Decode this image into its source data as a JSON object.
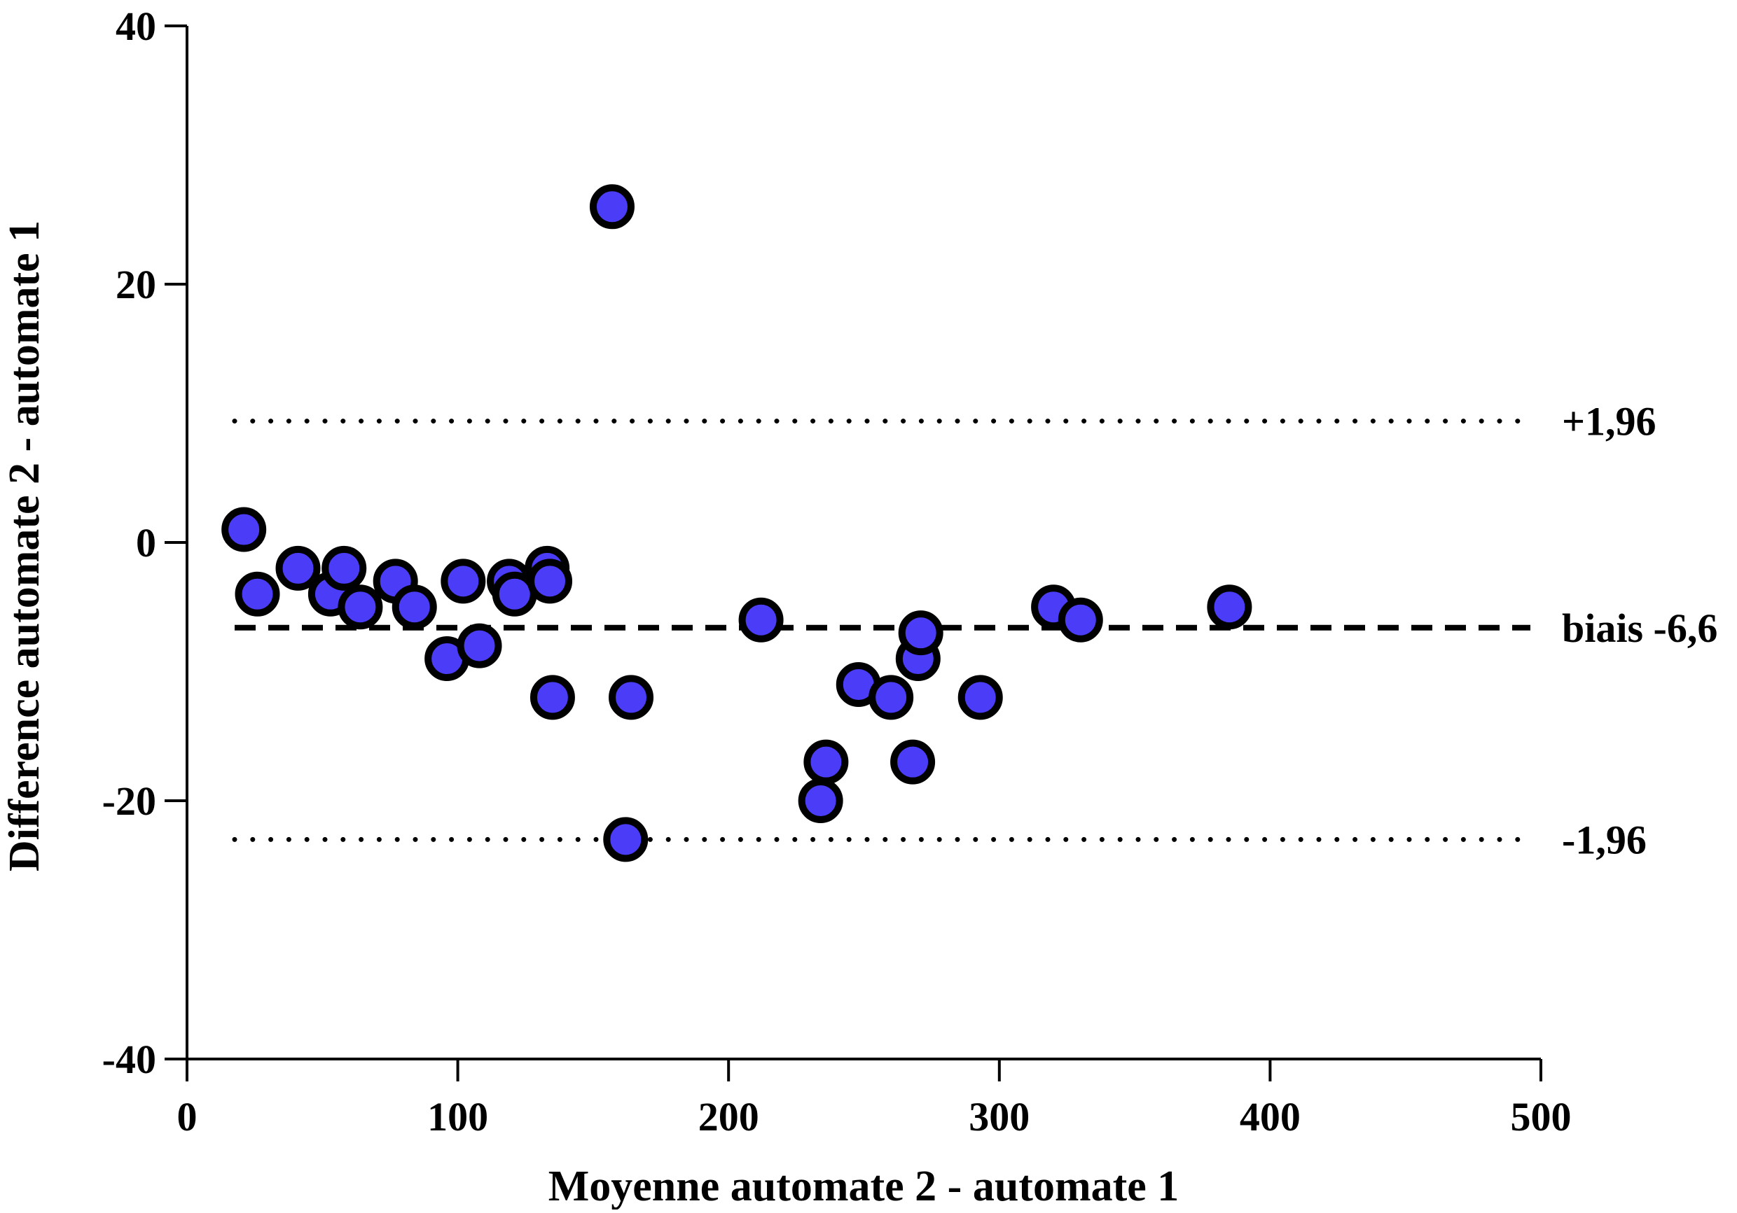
{
  "chart_data": {
    "type": "scatter",
    "title": "",
    "xlabel": "Moyenne automate 2 - automate 1",
    "ylabel": "Difference automate 2 - automate 1",
    "xlim": [
      0,
      500
    ],
    "ylim": [
      -40,
      40
    ],
    "x_ticks": [
      0,
      100,
      200,
      300,
      400,
      500
    ],
    "y_ticks": [
      -40,
      -20,
      0,
      20,
      40
    ],
    "x_tick_labels": [
      "0",
      "100",
      "200",
      "300",
      "400",
      "500"
    ],
    "y_tick_labels": [
      "-40",
      "-20",
      "0",
      "20",
      "40"
    ],
    "grid": false,
    "legend": "none",
    "point_color": "#4a3cf7",
    "point_edge_color": "#000000",
    "reference_lines": [
      {
        "label": "+1,96",
        "y": 9.4,
        "style": "dotted"
      },
      {
        "label": "biais -6,6",
        "y": -6.6,
        "style": "dashed"
      },
      {
        "label": "-1,96",
        "y": -23,
        "style": "dotted"
      }
    ],
    "points": [
      {
        "x": 21,
        "y": 1
      },
      {
        "x": 26,
        "y": -4
      },
      {
        "x": 41,
        "y": -2
      },
      {
        "x": 53,
        "y": -4
      },
      {
        "x": 58,
        "y": -2
      },
      {
        "x": 64,
        "y": -5
      },
      {
        "x": 77,
        "y": -3
      },
      {
        "x": 84,
        "y": -5
      },
      {
        "x": 96,
        "y": -9
      },
      {
        "x": 102,
        "y": -3
      },
      {
        "x": 108,
        "y": -8
      },
      {
        "x": 119,
        "y": -3
      },
      {
        "x": 121,
        "y": -4
      },
      {
        "x": 133,
        "y": -2
      },
      {
        "x": 134,
        "y": -3
      },
      {
        "x": 135,
        "y": -12
      },
      {
        "x": 157,
        "y": 26
      },
      {
        "x": 162,
        "y": -23
      },
      {
        "x": 164,
        "y": -12
      },
      {
        "x": 212,
        "y": -6
      },
      {
        "x": 234,
        "y": -20
      },
      {
        "x": 236,
        "y": -17
      },
      {
        "x": 248,
        "y": -11
      },
      {
        "x": 260,
        "y": -12
      },
      {
        "x": 268,
        "y": -17
      },
      {
        "x": 270,
        "y": -9
      },
      {
        "x": 271,
        "y": -7
      },
      {
        "x": 293,
        "y": -12
      },
      {
        "x": 320,
        "y": -5
      },
      {
        "x": 330,
        "y": -6
      },
      {
        "x": 385,
        "y": -5
      }
    ]
  }
}
